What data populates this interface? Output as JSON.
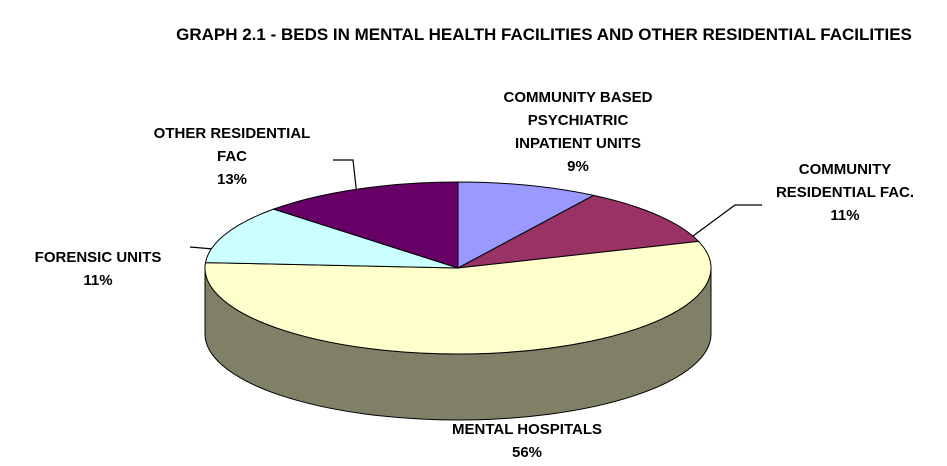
{
  "chart_data": {
    "type": "pie3d",
    "title": "GRAPH 2.1 - BEDS IN MENTAL HEALTH FACILITIES AND OTHER RESIDENTIAL FACILITIES",
    "categories": [
      "COMMUNITY BASED PSYCHIATRIC INPATIENT UNITS",
      "COMMUNITY RESIDENTIAL FAC.",
      "MENTAL HOSPITALS",
      "FORENSIC UNITS",
      "OTHER RESIDENTIAL FAC"
    ],
    "values": [
      9,
      11,
      56,
      11,
      13
    ],
    "value_labels": [
      "9%",
      "11%",
      "56%",
      "11%",
      "13%"
    ],
    "colors": [
      "#9999ff",
      "#993366",
      "#ffffcc",
      "#ccffff",
      "#660066"
    ]
  }
}
